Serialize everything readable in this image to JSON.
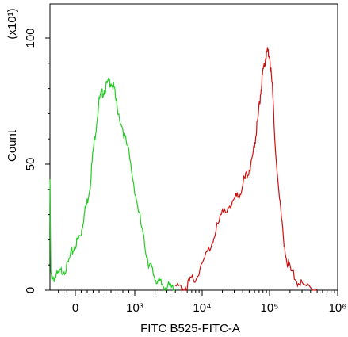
{
  "chart_data": {
    "type": "line",
    "title": "",
    "xlabel": "FITC B525-FITC-A",
    "ylabel": "Count",
    "y_scale_label": "(x10¹)",
    "x_scale": "biexponential",
    "xlim": [
      -300,
      1000000
    ],
    "ylim": [
      0,
      108
    ],
    "x_tick_labels": [
      "0",
      "10³",
      "10⁴",
      "10⁵",
      "10⁶"
    ],
    "x_tick_values": [
      0,
      1000,
      10000,
      100000,
      1000000
    ],
    "y_tick_labels": [
      "0",
      "50",
      "100"
    ],
    "y_tick_values": [
      0,
      50,
      100
    ],
    "grid": false,
    "legend": "none",
    "series": [
      {
        "color": "#22cc22",
        "x": [
          -300,
          -290,
          -250,
          -200,
          -150,
          -100,
          -50,
          0,
          50,
          100,
          150,
          200,
          250,
          300,
          350,
          400,
          450,
          500,
          550,
          600,
          650,
          700,
          800,
          900,
          1000,
          1200,
          1400,
          1600,
          1800,
          2000,
          2300,
          2600,
          3000,
          3500,
          4000
        ],
        "values": [
          44,
          6,
          5,
          6,
          8,
          9,
          14,
          18,
          20,
          23,
          30,
          35,
          42,
          55,
          65,
          75,
          78,
          80,
          82,
          83,
          80,
          73,
          64,
          54,
          40,
          28,
          18,
          11,
          8,
          5,
          3,
          2,
          1.5,
          0.8,
          0.3
        ]
      },
      {
        "color": "#cc1111",
        "x": [
          4000,
          5000,
          6000,
          7000,
          8000,
          10000,
          13000,
          16000,
          20000,
          25000,
          30000,
          35000,
          40000,
          45000,
          50000,
          55000,
          60000,
          65000,
          70000,
          75000,
          80000,
          85000,
          90000,
          95000,
          100000,
          110000,
          120000,
          140000,
          160000,
          180000,
          200000,
          250000,
          300000,
          400000,
          500000
        ],
        "values": [
          0.3,
          1,
          2,
          4,
          5,
          10,
          17,
          24,
          30,
          34,
          36,
          38,
          42,
          45,
          48,
          52,
          58,
          65,
          72,
          80,
          86,
          90,
          94,
          95,
          93,
          80,
          60,
          36,
          20,
          12,
          8,
          4,
          2,
          1,
          0.5
        ]
      }
    ]
  }
}
